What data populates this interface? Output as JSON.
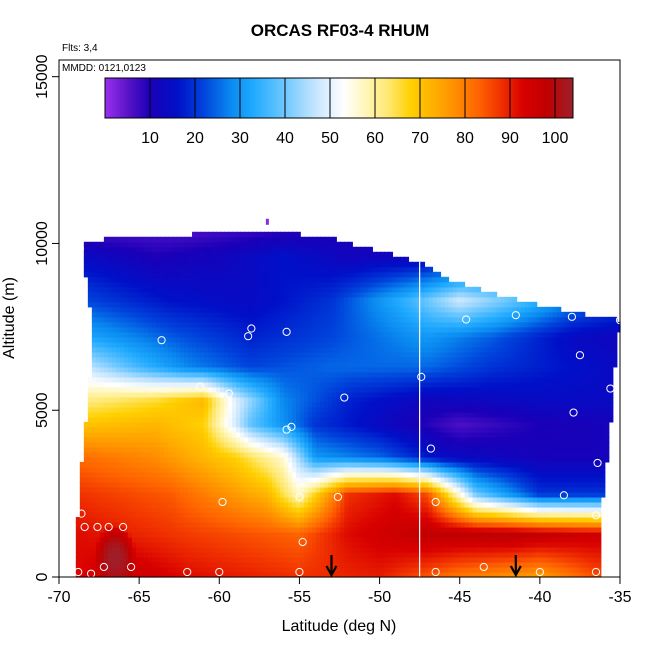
{
  "chart_data": {
    "type": "heatmap",
    "title": "ORCAS RF03-4 RHUM",
    "annotations": {
      "flights": "Flts: 3,4",
      "dates": "MMDD: 0121,0123"
    },
    "xlabel": "Latitude (deg N)",
    "ylabel": "Altitude (m)",
    "xlim": [
      -70,
      -35
    ],
    "ylim": [
      0,
      15500
    ],
    "xticks": [
      -70,
      -65,
      -60,
      -55,
      -50,
      -45,
      -40,
      -35
    ],
    "xtick_labels": [
      "-70",
      "-65",
      "-60",
      "-55",
      "-50",
      "-45",
      "-40",
      "-35"
    ],
    "yticks": [
      0,
      5000,
      10000,
      15000
    ],
    "ytick_labels": [
      "0",
      "5000",
      "10000",
      "15000"
    ],
    "colorbar": {
      "range": [
        0,
        104
      ],
      "ticks": [
        10,
        20,
        30,
        40,
        50,
        60,
        70,
        80,
        90,
        100
      ],
      "tick_labels": [
        "10",
        "20",
        "30",
        "40",
        "50",
        "60",
        "70",
        "80",
        "90",
        "100"
      ],
      "stops": [
        [
          0,
          "#9a2ff0"
        ],
        [
          5,
          "#5a14c8"
        ],
        [
          10,
          "#1a00b8"
        ],
        [
          16,
          "#0010c8"
        ],
        [
          22,
          "#0044dc"
        ],
        [
          28,
          "#0a8af0"
        ],
        [
          33,
          "#20aaff"
        ],
        [
          40,
          "#70c8ff"
        ],
        [
          47,
          "#c8e6ff"
        ],
        [
          53,
          "#ffffff"
        ],
        [
          58,
          "#fff6b8"
        ],
        [
          63,
          "#ffe870"
        ],
        [
          68,
          "#ffd000"
        ],
        [
          73,
          "#ffb000"
        ],
        [
          78,
          "#ff8c00"
        ],
        [
          83,
          "#ff6400"
        ],
        [
          88,
          "#f03000"
        ],
        [
          93,
          "#d80000"
        ],
        [
          98,
          "#c00000"
        ],
        [
          104,
          "#9e1f2a"
        ]
      ]
    },
    "top_boundary": [
      [
        -69,
        9900
      ],
      [
        -67,
        10150
      ],
      [
        -63,
        10150
      ],
      [
        -61,
        10350
      ],
      [
        -56,
        10350
      ],
      [
        -53,
        10150
      ],
      [
        -51,
        9900
      ],
      [
        -47.5,
        9450
      ],
      [
        -45.5,
        8900
      ],
      [
        -43,
        8500
      ],
      [
        -40,
        8150
      ],
      [
        -37.5,
        7900
      ],
      [
        -35,
        7700
      ]
    ],
    "left_boundary": [
      [
        0,
        -69
      ],
      [
        1300,
        -69
      ],
      [
        2200,
        -68.7
      ],
      [
        3300,
        -68.6
      ],
      [
        4300,
        -68.4
      ],
      [
        5300,
        -68.2
      ],
      [
        6500,
        -68
      ],
      [
        7800,
        -68
      ],
      [
        8800,
        -68.3
      ],
      [
        9900,
        -68.4
      ]
    ],
    "right_boundary": [
      [
        0,
        -36.3
      ],
      [
        1800,
        -36.3
      ],
      [
        2600,
        -36
      ],
      [
        3500,
        -35.8
      ],
      [
        4500,
        -35.6
      ],
      [
        6500,
        -35.3
      ],
      [
        7700,
        -35
      ]
    ],
    "bands": [
      {
        "name": "surface",
        "anchors": [
          [
            -69,
            0,
            92
          ],
          [
            -66,
            0,
            97
          ],
          [
            -62,
            0,
            92
          ],
          [
            -55,
            0,
            88
          ],
          [
            -50,
            0,
            90
          ],
          [
            -45,
            0,
            80
          ],
          [
            -40,
            0,
            75
          ],
          [
            -36.5,
            0,
            85
          ]
        ]
      },
      {
        "name": "low",
        "anchors": [
          [
            -69,
            1300,
            92
          ],
          [
            -62,
            1300,
            87
          ],
          [
            -55,
            1300,
            83
          ],
          [
            -52,
            1300,
            92
          ],
          [
            -47,
            1300,
            98
          ],
          [
            -42,
            1300,
            99
          ],
          [
            -36.5,
            1300,
            95
          ]
        ]
      },
      {
        "name": "lower",
        "anchors": [
          [
            -69,
            2500,
            88
          ],
          [
            -63,
            2500,
            84
          ],
          [
            -57,
            2500,
            72
          ],
          [
            -55,
            2500,
            57
          ],
          [
            -52,
            2500,
            88
          ],
          [
            -49,
            2500,
            92
          ],
          [
            -47,
            2500,
            85
          ],
          [
            -44,
            2500,
            40
          ],
          [
            -40,
            2500,
            20
          ],
          [
            -36.5,
            2500,
            20
          ]
        ]
      },
      {
        "name": "mid-low",
        "anchors": [
          [
            -68.6,
            3600,
            82
          ],
          [
            -64,
            3600,
            78
          ],
          [
            -59,
            3600,
            68
          ],
          [
            -56,
            3600,
            56
          ],
          [
            -54,
            3600,
            30
          ],
          [
            -50,
            3600,
            25
          ],
          [
            -46,
            3600,
            14
          ],
          [
            -40,
            3600,
            11
          ],
          [
            -36,
            3600,
            11
          ]
        ]
      },
      {
        "name": "mid",
        "anchors": [
          [
            -68.4,
            4600,
            70
          ],
          [
            -64,
            4600,
            72
          ],
          [
            -61,
            4600,
            68
          ],
          [
            -58,
            4600,
            38
          ],
          [
            -54,
            4600,
            20
          ],
          [
            -49,
            4600,
            12
          ],
          [
            -45,
            4600,
            6
          ],
          [
            -40,
            4600,
            10
          ],
          [
            -35.6,
            4600,
            11
          ]
        ]
      },
      {
        "name": "mid-high",
        "anchors": [
          [
            -68.2,
            5300,
            62
          ],
          [
            -64,
            5300,
            66
          ],
          [
            -61,
            5300,
            72
          ],
          [
            -59,
            5300,
            50
          ],
          [
            -56,
            5300,
            28
          ],
          [
            -52,
            5300,
            18
          ],
          [
            -47,
            5300,
            12
          ],
          [
            -40,
            5300,
            14
          ],
          [
            -35.6,
            5300,
            14
          ]
        ]
      },
      {
        "name": "upper-mid",
        "anchors": [
          [
            -68,
            6300,
            46
          ],
          [
            -65,
            6300,
            36
          ],
          [
            -62,
            6300,
            28
          ],
          [
            -58,
            6300,
            22
          ],
          [
            -53,
            6300,
            25
          ],
          [
            -47,
            6300,
            25
          ],
          [
            -43,
            6300,
            20
          ],
          [
            -38,
            6300,
            16
          ],
          [
            -35.3,
            6300,
            14
          ]
        ]
      },
      {
        "name": "upper",
        "anchors": [
          [
            -68,
            7200,
            32
          ],
          [
            -63,
            7200,
            24
          ],
          [
            -58,
            7200,
            18
          ],
          [
            -53,
            7200,
            22
          ],
          [
            -47,
            7200,
            30
          ],
          [
            -43,
            7200,
            24
          ],
          [
            -38,
            7200,
            14
          ],
          [
            -35,
            7200,
            12
          ]
        ]
      },
      {
        "name": "high",
        "anchors": [
          [
            -68.3,
            8300,
            22
          ],
          [
            -63,
            8300,
            16
          ],
          [
            -58,
            8300,
            14
          ],
          [
            -53,
            8300,
            20
          ],
          [
            -48,
            8300,
            36
          ],
          [
            -45,
            8300,
            48
          ],
          [
            -42,
            8300,
            40
          ],
          [
            -38,
            8300,
            28
          ],
          [
            -35,
            8300,
            22
          ]
        ]
      },
      {
        "name": "top",
        "anchors": [
          [
            -68.4,
            9600,
            14
          ],
          [
            -64,
            9600,
            10
          ],
          [
            -60,
            9600,
            12
          ],
          [
            -56,
            9600,
            16
          ],
          [
            -52,
            9600,
            12
          ],
          [
            -48,
            9600,
            12
          ],
          [
            -45,
            9600,
            14
          ],
          [
            -40,
            9600,
            20
          ],
          [
            -36,
            9600,
            18
          ]
        ]
      },
      {
        "name": "ceiling",
        "anchors": [
          [
            -68,
            10400,
            6
          ],
          [
            -62,
            10400,
            6
          ],
          [
            -57,
            10400,
            8
          ],
          [
            -52,
            10400,
            10
          ],
          [
            -47,
            10400,
            10
          ],
          [
            -40,
            10400,
            12
          ],
          [
            -36,
            10400,
            12
          ]
        ]
      }
    ],
    "features": [
      {
        "name": "low-plume",
        "center": [
          -66.5,
          600
        ],
        "radius": [
          1.3,
          1000
        ],
        "value": 104
      }
    ],
    "flight_track_lines": [
      -47.5
    ],
    "sample_points": [
      [
        -68.8,
        150
      ],
      [
        -68,
        100
      ],
      [
        -67.2,
        300
      ],
      [
        -65.5,
        300
      ],
      [
        -62,
        150
      ],
      [
        -60,
        150
      ],
      [
        -55,
        150
      ],
      [
        -46.5,
        150
      ],
      [
        -43.5,
        300
      ],
      [
        -40,
        150
      ],
      [
        -36.5,
        150
      ],
      [
        -68.6,
        1900
      ],
      [
        -68.4,
        1500
      ],
      [
        -67.6,
        1500
      ],
      [
        -66.9,
        1500
      ],
      [
        -66,
        1500
      ],
      [
        -59.8,
        2250
      ],
      [
        -55,
        2400
      ],
      [
        -54.8,
        1050
      ],
      [
        -52.6,
        2400
      ],
      [
        -46.5,
        2250
      ],
      [
        -38.5,
        2450
      ],
      [
        -36.5,
        1850
      ],
      [
        -68.8,
        4350
      ],
      [
        -61.2,
        5700
      ],
      [
        -59.4,
        5500
      ],
      [
        -55.8,
        4420
      ],
      [
        -55.5,
        4500
      ],
      [
        -52.2,
        5380
      ],
      [
        -46.8,
        3850
      ],
      [
        -47.4,
        6000
      ],
      [
        -36.4,
        3420
      ],
      [
        -37.9,
        4930
      ],
      [
        -35.6,
        5650
      ],
      [
        -68.4,
        6800
      ],
      [
        -63.6,
        7100
      ],
      [
        -58.2,
        7220
      ],
      [
        -58,
        7450
      ],
      [
        -55.8,
        7350
      ],
      [
        -44.6,
        7720
      ],
      [
        -41.5,
        7850
      ],
      [
        -38,
        7800
      ],
      [
        -35,
        7700
      ],
      [
        -37.5,
        6650
      ],
      [
        -68.7,
        9850
      ]
    ],
    "arrows": [
      -53,
      -41.5
    ],
    "marker": [
      -57,
      10650
    ]
  }
}
